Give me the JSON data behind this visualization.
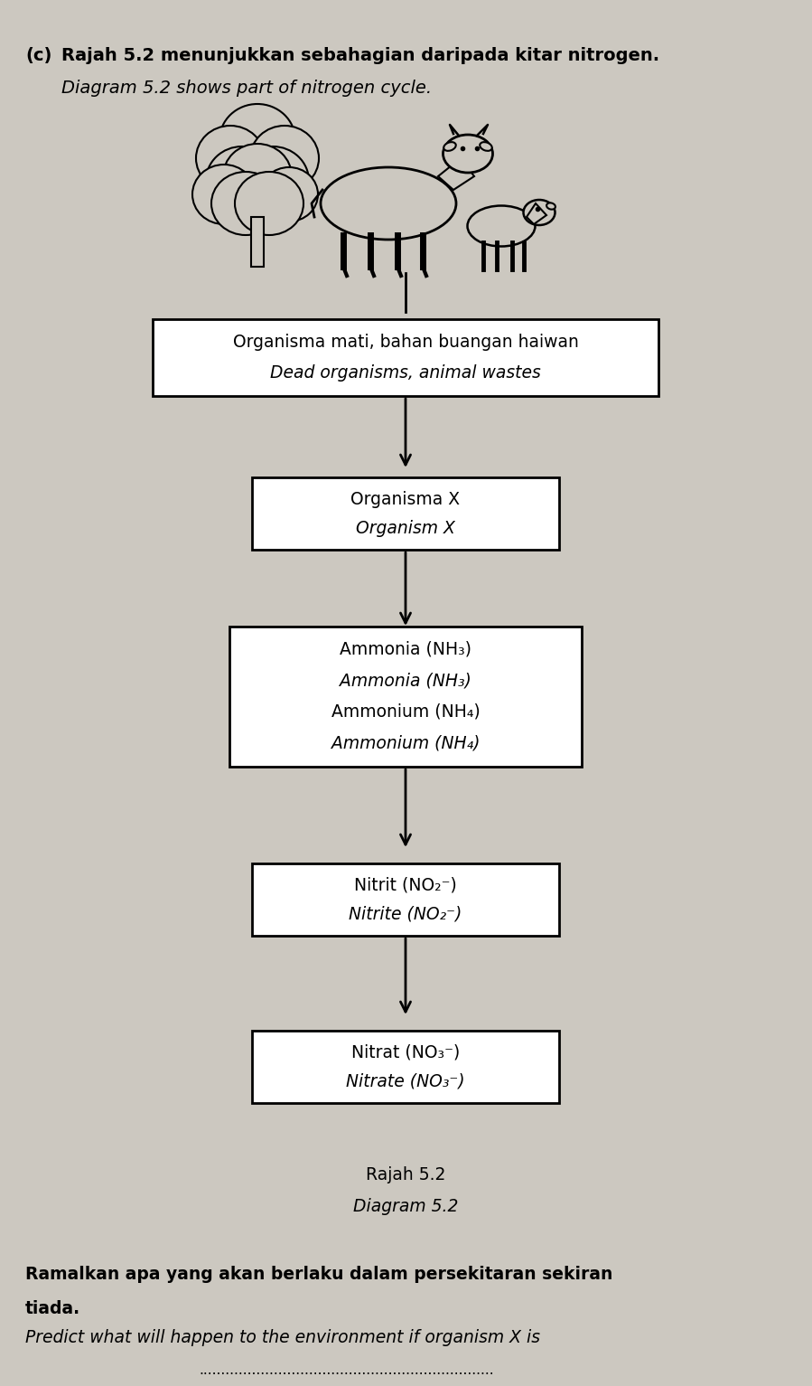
{
  "bg_color": "#ccc8c0",
  "title_line1_prefix": "(c)",
  "title_line1_main": "Rajah 5.2 menunjukkan sebahagian daripada kitar nitrogen.",
  "title_line2": "Diagram 5.2 shows part of nitrogen cycle.",
  "box0_line1": "Organisma mati, bahan buangan haiwan",
  "box0_line2": "Dead organisms, animal wastes",
  "box1_line1": "Organisma X",
  "box1_line2": "Organism X",
  "box2_line1": "Ammonia (NH₃)",
  "box2_line2": "Ammonia (NH₃)",
  "box2_line3": "Ammonium (NH₄)",
  "box2_line4": "Ammonium (NH₄)",
  "box3_line1": "Nitrit (NO₂⁻)",
  "box3_line2": "Nitrite (NO₂⁻)",
  "box4_line1": "Nitrat (NO₃⁻)",
  "box4_line2": "Nitrate (NO₃⁻)",
  "caption_line1": "Rajah 5.2",
  "caption_line2": "Diagram 5.2",
  "bottom1": "Ramalkan apa yang akan berlaku dalam persekitaran sekiran",
  "bottom2": "tiada.",
  "bottom3": "Predict what will happen to the environment if organism X is",
  "dotline": "..................................................................."
}
